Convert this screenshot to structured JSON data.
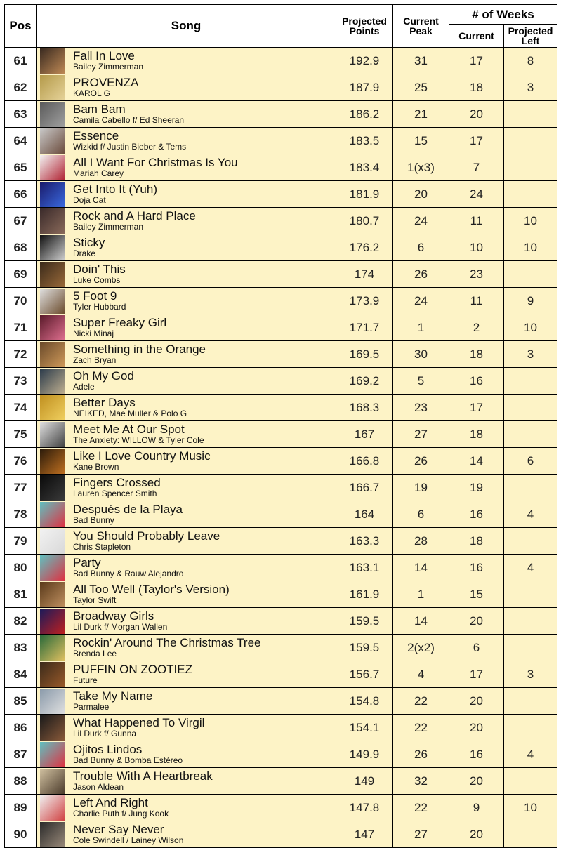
{
  "header": {
    "pos": "Pos",
    "song": "Song",
    "projected_points_1": "Projected",
    "projected_points_2": "Points",
    "current_peak_1": "Current",
    "current_peak_2": "Peak",
    "weeks": "# of Weeks",
    "weeks_current": "Current",
    "weeks_projected_left_1": "Projected",
    "weeks_projected_left_2": "Left"
  },
  "rows": [
    {
      "pos": "61",
      "title": "Fall In Love",
      "artist": "Bailey Zimmerman",
      "points": "192.9",
      "peak": "31",
      "current": "17",
      "left": "8",
      "art": [
        "#3a2a20",
        "#c08a55"
      ]
    },
    {
      "pos": "62",
      "title": "PROVENZA",
      "artist": "KAROL G",
      "points": "187.9",
      "peak": "25",
      "current": "18",
      "left": "3",
      "art": [
        "#b49a4a",
        "#e6d39a"
      ]
    },
    {
      "pos": "63",
      "title": "Bam Bam",
      "artist": "Camila Cabello f/ Ed Sheeran",
      "points": "186.2",
      "peak": "21",
      "current": "20",
      "left": "",
      "art": [
        "#5a5a5a",
        "#a0a0a0"
      ]
    },
    {
      "pos": "64",
      "title": "Essence",
      "artist": "Wizkid f/ Justin Bieber & Tems",
      "points": "183.5",
      "peak": "15",
      "current": "17",
      "left": "",
      "art": [
        "#c8c8c8",
        "#6a4a3a"
      ]
    },
    {
      "pos": "65",
      "title": "All I Want For Christmas Is You",
      "artist": "Mariah Carey",
      "points": "183.4",
      "peak": "1(x3)",
      "current": "7",
      "left": "",
      "art": [
        "#f2f2f2",
        "#b02030"
      ]
    },
    {
      "pos": "66",
      "title": "Get Into It (Yuh)",
      "artist": "Doja Cat",
      "points": "181.9",
      "peak": "20",
      "current": "24",
      "left": "",
      "art": [
        "#1a1a6a",
        "#3a6ae0"
      ]
    },
    {
      "pos": "67",
      "title": "Rock and A Hard Place",
      "artist": "Bailey Zimmerman",
      "points": "180.7",
      "peak": "24",
      "current": "11",
      "left": "10",
      "art": [
        "#3a2a2a",
        "#8a6a5a"
      ]
    },
    {
      "pos": "68",
      "title": "Sticky",
      "artist": "Drake",
      "points": "176.2",
      "peak": "6",
      "current": "10",
      "left": "10",
      "art": [
        "#101010",
        "#d0d0d0"
      ]
    },
    {
      "pos": "69",
      "title": "Doin' This",
      "artist": "Luke Combs",
      "points": "174",
      "peak": "26",
      "current": "23",
      "left": "",
      "art": [
        "#3a2a1a",
        "#9a6a3a"
      ]
    },
    {
      "pos": "70",
      "title": "5 Foot 9",
      "artist": "Tyler Hubbard",
      "points": "173.9",
      "peak": "24",
      "current": "11",
      "left": "9",
      "art": [
        "#e0e0e0",
        "#6a4a2a"
      ]
    },
    {
      "pos": "71",
      "title": "Super Freaky Girl",
      "artist": "Nicki Minaj",
      "points": "171.7",
      "peak": "1",
      "current": "2",
      "left": "10",
      "art": [
        "#5a1a2a",
        "#e07090"
      ]
    },
    {
      "pos": "72",
      "title": "Something in the Orange",
      "artist": "Zach Bryan",
      "points": "169.5",
      "peak": "30",
      "current": "18",
      "left": "3",
      "art": [
        "#6a4a2a",
        "#d09a5a"
      ]
    },
    {
      "pos": "73",
      "title": "Oh My God",
      "artist": "Adele",
      "points": "169.2",
      "peak": "5",
      "current": "16",
      "left": "",
      "art": [
        "#2a3a4a",
        "#c0b090"
      ]
    },
    {
      "pos": "74",
      "title": "Better Days",
      "artist": "NEIKED, Mae Muller & Polo G",
      "points": "168.3",
      "peak": "23",
      "current": "17",
      "left": "",
      "art": [
        "#c09020",
        "#f0d060"
      ]
    },
    {
      "pos": "75",
      "title": "Meet Me At Our Spot",
      "artist": "The Anxiety: WILLOW & Tyler Cole",
      "points": "167",
      "peak": "27",
      "current": "18",
      "left": "",
      "art": [
        "#e0e0e0",
        "#404040"
      ]
    },
    {
      "pos": "76",
      "title": "Like I Love Country Music",
      "artist": "Kane Brown",
      "points": "166.8",
      "peak": "26",
      "current": "14",
      "left": "6",
      "art": [
        "#2a1a0a",
        "#c07020"
      ]
    },
    {
      "pos": "77",
      "title": "Fingers Crossed",
      "artist": "Lauren Spencer Smith",
      "points": "166.7",
      "peak": "19",
      "current": "19",
      "left": "",
      "art": [
        "#0a0a0a",
        "#3a3a3a"
      ]
    },
    {
      "pos": "78",
      "title": "Después de la Playa",
      "artist": "Bad Bunny",
      "points": "164",
      "peak": "6",
      "current": "16",
      "left": "4",
      "art": [
        "#60c0c0",
        "#e03040"
      ]
    },
    {
      "pos": "79",
      "title": "You Should Probably Leave",
      "artist": "Chris Stapleton",
      "points": "163.3",
      "peak": "28",
      "current": "18",
      "left": "",
      "art": [
        "#f2f2f2",
        "#d8d8d8"
      ]
    },
    {
      "pos": "80",
      "title": "Party",
      "artist": "Bad Bunny & Rauw Alejandro",
      "points": "163.1",
      "peak": "14",
      "current": "16",
      "left": "4",
      "art": [
        "#60c0c0",
        "#e03040"
      ]
    },
    {
      "pos": "81",
      "title": "All Too Well (Taylor's Version)",
      "artist": "Taylor Swift",
      "points": "161.9",
      "peak": "1",
      "current": "15",
      "left": "",
      "art": [
        "#5a3a1a",
        "#c09060"
      ]
    },
    {
      "pos": "82",
      "title": "Broadway Girls",
      "artist": "Lil Durk f/ Morgan Wallen",
      "points": "159.5",
      "peak": "14",
      "current": "20",
      "left": "",
      "art": [
        "#1a1a5a",
        "#c02020"
      ]
    },
    {
      "pos": "83",
      "title": "Rockin' Around The Christmas Tree",
      "artist": "Brenda Lee",
      "points": "159.5",
      "peak": "2(x2)",
      "current": "6",
      "left": "",
      "art": [
        "#2a6a3a",
        "#e0c060"
      ]
    },
    {
      "pos": "84",
      "title": "PUFFIN ON ZOOTIEZ",
      "artist": "Future",
      "points": "156.7",
      "peak": "4",
      "current": "17",
      "left": "3",
      "art": [
        "#3a2a1a",
        "#9a5a2a"
      ]
    },
    {
      "pos": "85",
      "title": "Take My Name",
      "artist": "Parmalee",
      "points": "154.8",
      "peak": "22",
      "current": "20",
      "left": "",
      "art": [
        "#8a9aaa",
        "#e0e0e0"
      ]
    },
    {
      "pos": "86",
      "title": "What Happened To Virgil",
      "artist": "Lil Durk f/ Gunna",
      "points": "154.1",
      "peak": "22",
      "current": "20",
      "left": "",
      "art": [
        "#1a1a1a",
        "#8a5a3a"
      ]
    },
    {
      "pos": "87",
      "title": "Ojitos Lindos",
      "artist": "Bad Bunny & Bomba Estéreo",
      "points": "149.9",
      "peak": "26",
      "current": "16",
      "left": "4",
      "art": [
        "#60c0c0",
        "#e03040"
      ]
    },
    {
      "pos": "88",
      "title": "Trouble With A Heartbreak",
      "artist": "Jason Aldean",
      "points": "149",
      "peak": "32",
      "current": "20",
      "left": "",
      "art": [
        "#d0c0a0",
        "#4a3a2a"
      ]
    },
    {
      "pos": "89",
      "title": "Left And Right",
      "artist": "Charlie Puth f/ Jung Kook",
      "points": "147.8",
      "peak": "22",
      "current": "9",
      "left": "10",
      "art": [
        "#f0f0f0",
        "#d04040"
      ]
    },
    {
      "pos": "90",
      "title": "Never Say Never",
      "artist": "Cole Swindell / Lainey Wilson",
      "points": "147",
      "peak": "27",
      "current": "20",
      "left": "",
      "art": [
        "#2a2a2a",
        "#9a8a7a"
      ]
    }
  ]
}
